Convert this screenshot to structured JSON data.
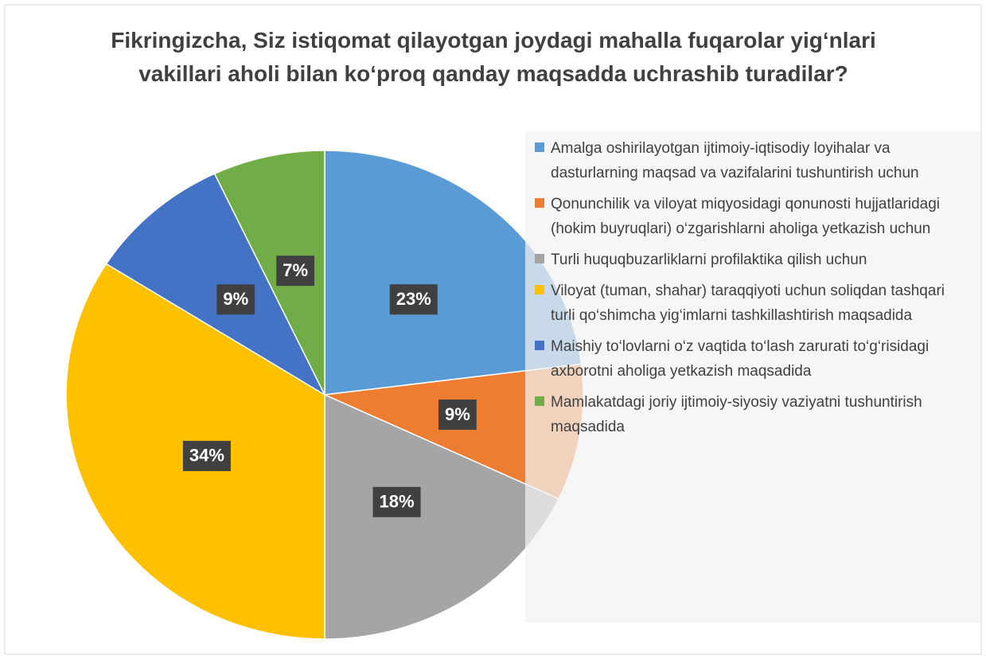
{
  "chart_data": {
    "type": "pie",
    "title": "Fikringizcha, Siz istiqomat qilayotgan joydagi mahalla fuqarolar yig‘nlari vakillari aholi bilan ko‘proq qanday maqsadda uchrashib turadilar?",
    "categories": [
      "Amalga oshirilayotgan ijtimoiy-iqtisodiy loyihalar va dasturlarning maqsad va vazifalarini tushuntirish uchun",
      "Qonunchilik va viloyat miqyosidagi qonunosti hujjatlaridagi (hokim buyruqlari) o‘zgarishlarni aholiga yetkazish uchun",
      "Turli huquqbuzarliklarni profilaktika qilish uchun",
      "Viloyat (tuman, shahar) taraqqiyoti uchun soliqdan tashqari turli qo‘shimcha yig‘imlarni tashkillashtirish maqsadida",
      "Maishiy to‘lovlarni o‘z vaqtida to‘lash zarurati to‘g‘risidagi axborotni aholiga yetkazish maqsadida",
      "Mamlakatdagi joriy ijtimoiy-siyosiy vaziyatni tushuntirish maqsadida"
    ],
    "values": [
      23,
      9,
      18,
      34,
      9,
      7
    ],
    "value_labels": [
      "23%",
      "9%",
      "18%",
      "34%",
      "9%",
      "7%"
    ],
    "colors": [
      "#5b9bd5",
      "#ed7d31",
      "#a5a5a5",
      "#ffc000",
      "#4472c4",
      "#70ad47"
    ],
    "legend": "right"
  }
}
